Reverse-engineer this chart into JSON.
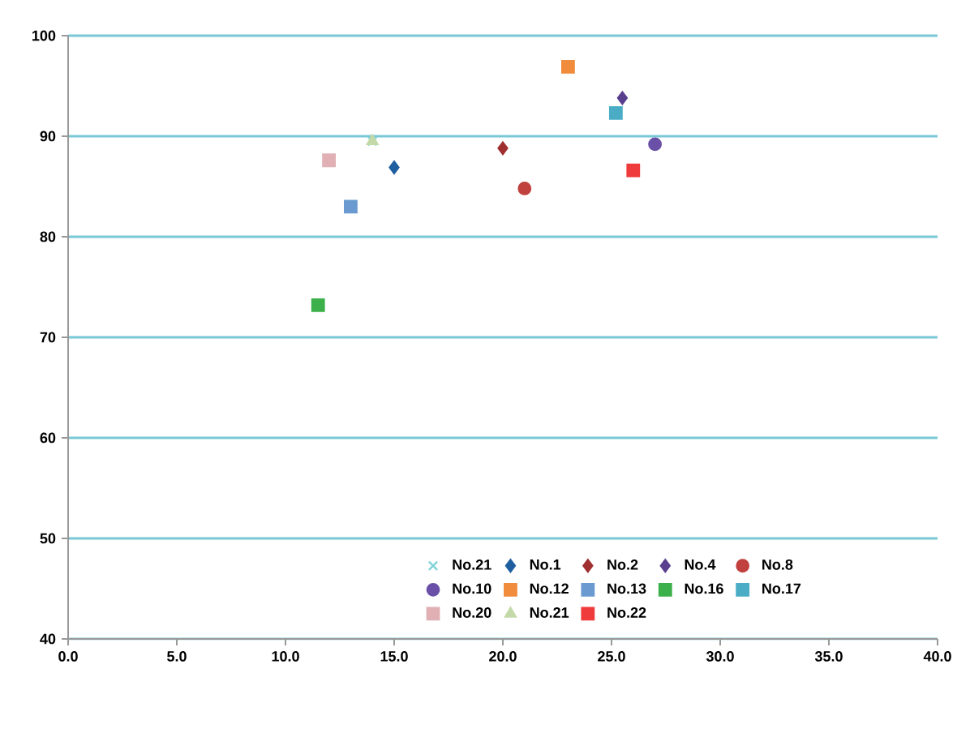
{
  "chart_data": {
    "type": "scatter",
    "xlim": [
      0,
      40
    ],
    "ylim": [
      40,
      100
    ],
    "xticks": [
      {
        "value": 0,
        "label": "0.0"
      },
      {
        "value": 5,
        "label": "5.0"
      },
      {
        "value": 10,
        "label": "10.0"
      },
      {
        "value": 15,
        "label": "15.0"
      },
      {
        "value": 20,
        "label": "20.0"
      },
      {
        "value": 25,
        "label": "25.0"
      },
      {
        "value": 30,
        "label": "30.0"
      },
      {
        "value": 35,
        "label": "35.0"
      },
      {
        "value": 40,
        "label": "40.0"
      }
    ],
    "yticks": [
      40,
      50,
      60,
      70,
      80,
      90,
      100
    ],
    "grid": "y",
    "legend": "bottom",
    "series": [
      {
        "name": "No.21",
        "color": "#7fd3d8",
        "marker": "cross",
        "x": [
          14.0
        ],
        "values": [
          89.5
        ]
      },
      {
        "name": "No.1",
        "color": "#1f5fa0",
        "marker": "diamond",
        "x": [
          15.0
        ],
        "values": [
          86.9
        ]
      },
      {
        "name": "No.2",
        "color": "#a03030",
        "marker": "diamond",
        "x": [
          20.0
        ],
        "values": [
          88.8
        ]
      },
      {
        "name": "No.4",
        "color": "#5a3f8f",
        "marker": "diamond",
        "x": [
          25.5
        ],
        "values": [
          93.8
        ]
      },
      {
        "name": "No.8",
        "color": "#c0413d",
        "marker": "circle",
        "x": [
          21.0
        ],
        "values": [
          84.8
        ]
      },
      {
        "name": "No.10",
        "color": "#6a50a7",
        "marker": "circle",
        "x": [
          27.0
        ],
        "values": [
          89.2
        ]
      },
      {
        "name": "No.12",
        "color": "#f08c3c",
        "marker": "square",
        "x": [
          23.0
        ],
        "values": [
          96.9
        ]
      },
      {
        "name": "No.13",
        "color": "#6a9ad0",
        "marker": "square",
        "x": [
          13.0
        ],
        "values": [
          83.0
        ]
      },
      {
        "name": "No.16",
        "color": "#3cb04a",
        "marker": "square",
        "x": [
          11.5
        ],
        "values": [
          73.2
        ]
      },
      {
        "name": "No.17",
        "color": "#4bacc6",
        "marker": "square",
        "x": [
          25.2
        ],
        "values": [
          92.3
        ]
      },
      {
        "name": "No.20",
        "color": "#e0b0b5",
        "marker": "square",
        "x": [
          12.0
        ],
        "values": [
          87.6
        ]
      },
      {
        "name": "No.21",
        "color": "#c4d9a8",
        "marker": "triangle",
        "x": [
          14.0
        ],
        "values": [
          89.5
        ]
      },
      {
        "name": "No.22",
        "color": "#ef3b3b",
        "marker": "square",
        "x": [
          26.0
        ],
        "values": [
          86.6
        ]
      }
    ]
  }
}
